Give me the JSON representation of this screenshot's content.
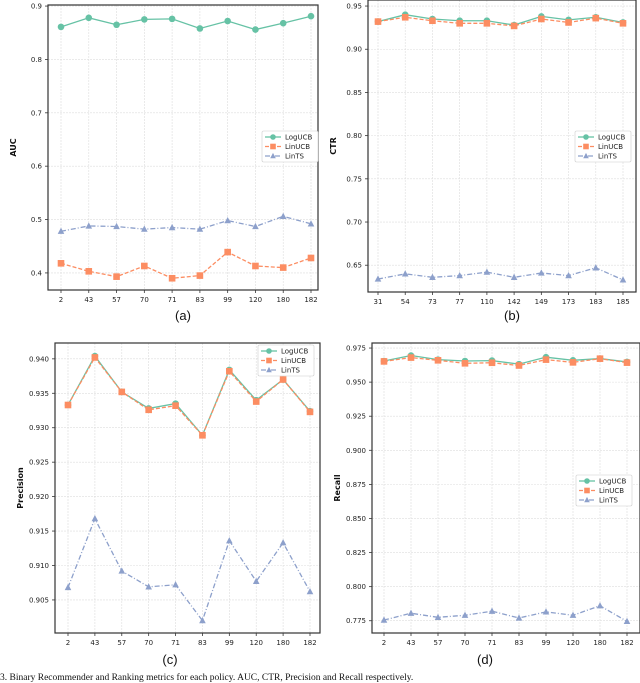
{
  "figure_caption": "3.  Binary Recommender and Ranking metrics for each policy. AUC, CTR, Precision and Recall respectively.",
  "colors": {
    "LogUCB": "#66c2a5",
    "LinUCB": "#fc8d62",
    "LinTS": "#8da0cb"
  },
  "chart_data": [
    {
      "type": "line",
      "panel_label": "(a)",
      "ylabel": "AUC",
      "xlabel": "",
      "categories": [
        "2",
        "43",
        "57",
        "70",
        "71",
        "83",
        "99",
        "120",
        "180",
        "182"
      ],
      "ylim": [
        0.368,
        0.902
      ],
      "yticks": [
        0.4,
        0.5,
        0.6,
        0.7,
        0.8,
        0.9
      ],
      "ytick_labels": [
        "0.4",
        "0.5",
        "0.6",
        "0.7",
        "0.8",
        "0.9"
      ],
      "grid": true,
      "legend": "center-right",
      "series": [
        {
          "name": "LogUCB",
          "marker": "circle",
          "linestyle": "solid",
          "values": [
            0.861,
            0.878,
            0.865,
            0.875,
            0.876,
            0.858,
            0.872,
            0.856,
            0.868,
            0.881
          ]
        },
        {
          "name": "LinUCB",
          "marker": "square",
          "linestyle": "dashed",
          "values": [
            0.418,
            0.403,
            0.393,
            0.413,
            0.39,
            0.395,
            0.439,
            0.413,
            0.41,
            0.428
          ]
        },
        {
          "name": "LinTS",
          "marker": "triangle",
          "linestyle": "dashdot",
          "values": [
            0.478,
            0.488,
            0.487,
            0.482,
            0.485,
            0.482,
            0.498,
            0.487,
            0.506,
            0.492
          ]
        }
      ]
    },
    {
      "type": "line",
      "panel_label": "(b)",
      "ylabel": "CTR",
      "xlabel": "",
      "categories": [
        "31",
        "54",
        "73",
        "77",
        "110",
        "142",
        "149",
        "173",
        "183",
        "185"
      ],
      "ylim": [
        0.619,
        0.957
      ],
      "yticks": [
        0.65,
        0.7,
        0.75,
        0.8,
        0.85,
        0.9,
        0.95
      ],
      "ytick_labels": [
        "0.65",
        "0.70",
        "0.75",
        "0.80",
        "0.85",
        "0.90",
        "0.95"
      ],
      "grid": true,
      "legend": "center-right",
      "series": [
        {
          "name": "LogUCB",
          "marker": "circle",
          "linestyle": "solid",
          "values": [
            0.932,
            0.94,
            0.935,
            0.933,
            0.933,
            0.928,
            0.938,
            0.934,
            0.937,
            0.931
          ]
        },
        {
          "name": "LinUCB",
          "marker": "square",
          "linestyle": "dashed",
          "values": [
            0.932,
            0.937,
            0.933,
            0.93,
            0.93,
            0.927,
            0.935,
            0.931,
            0.936,
            0.93
          ]
        },
        {
          "name": "LinTS",
          "marker": "triangle",
          "linestyle": "dashdot",
          "values": [
            0.634,
            0.64,
            0.636,
            0.638,
            0.642,
            0.636,
            0.641,
            0.638,
            0.647,
            0.633
          ]
        }
      ]
    },
    {
      "type": "line",
      "panel_label": "(c)",
      "ylabel": "Precision",
      "xlabel": "",
      "categories": [
        "2",
        "43",
        "57",
        "70",
        "71",
        "83",
        "99",
        "120",
        "180",
        "182"
      ],
      "ylim": [
        0.9002,
        0.9423
      ],
      "yticks": [
        0.905,
        0.91,
        0.915,
        0.92,
        0.925,
        0.93,
        0.935,
        0.94
      ],
      "ytick_labels": [
        "0.905",
        "0.910",
        "0.915",
        "0.920",
        "0.925",
        "0.930",
        "0.935",
        "0.940"
      ],
      "grid": true,
      "legend": "upper-right",
      "series": [
        {
          "name": "LogUCB",
          "marker": "circle",
          "linestyle": "solid",
          "values": [
            0.9333,
            0.9404,
            0.9352,
            0.9328,
            0.9335,
            0.9289,
            0.9384,
            0.934,
            0.937,
            0.9324
          ]
        },
        {
          "name": "LinUCB",
          "marker": "square",
          "linestyle": "dashed",
          "values": [
            0.9333,
            0.9402,
            0.9352,
            0.9326,
            0.9332,
            0.9289,
            0.9382,
            0.9338,
            0.937,
            0.9323
          ]
        },
        {
          "name": "LinTS",
          "marker": "triangle",
          "linestyle": "dashdot",
          "values": [
            0.9068,
            0.9168,
            0.9092,
            0.9069,
            0.9072,
            0.902,
            0.9136,
            0.9077,
            0.9133,
            0.9062
          ]
        }
      ]
    },
    {
      "type": "line",
      "panel_label": "(d)",
      "ylabel": "Recall",
      "xlabel": "",
      "categories": [
        "2",
        "43",
        "57",
        "70",
        "71",
        "83",
        "99",
        "120",
        "180",
        "182"
      ],
      "ylim": [
        0.766,
        0.9787
      ],
      "yticks": [
        0.775,
        0.8,
        0.825,
        0.85,
        0.875,
        0.9,
        0.925,
        0.95,
        0.975
      ],
      "ytick_labels": [
        "0.775",
        "0.800",
        "0.825",
        "0.850",
        "0.875",
        "0.900",
        "0.925",
        "0.950",
        "0.975"
      ],
      "grid": true,
      "legend": "center-right",
      "series": [
        {
          "name": "LogUCB",
          "marker": "circle",
          "linestyle": "solid",
          "values": [
            0.9655,
            0.9695,
            0.9665,
            0.9655,
            0.9658,
            0.9632,
            0.9683,
            0.966,
            0.9673,
            0.9648
          ]
        },
        {
          "name": "LinUCB",
          "marker": "square",
          "linestyle": "dashed",
          "values": [
            0.9652,
            0.968,
            0.966,
            0.9638,
            0.9642,
            0.9622,
            0.9665,
            0.9645,
            0.9672,
            0.9643
          ]
        },
        {
          "name": "LinTS",
          "marker": "triangle",
          "linestyle": "dashdot",
          "values": [
            0.7755,
            0.7805,
            0.7775,
            0.779,
            0.782,
            0.777,
            0.7815,
            0.779,
            0.786,
            0.7745
          ]
        }
      ]
    }
  ]
}
